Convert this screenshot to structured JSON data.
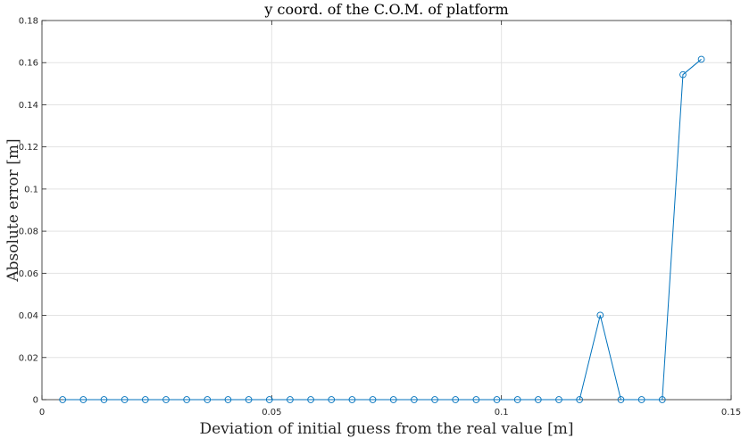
{
  "chart_data": {
    "type": "line",
    "title": "y coord. of the C.O.M. of platform",
    "xlabel": "Deviation of initial guess from the real value [m]",
    "ylabel": "Absolute error [m]",
    "xlim": [
      0,
      0.15
    ],
    "ylim": [
      0,
      0.18
    ],
    "xticks": [
      0,
      0.05,
      0.1,
      0.15
    ],
    "xtick_labels": [
      "0",
      "0.05",
      "0.1",
      "0.15"
    ],
    "yticks": [
      0,
      0.02,
      0.04,
      0.06,
      0.08,
      0.1,
      0.12,
      0.14,
      0.16,
      0.18
    ],
    "ytick_labels": [
      "0",
      "0.02",
      "0.04",
      "0.06",
      "0.08",
      "0.1",
      "0.12",
      "0.14",
      "0.16",
      "0.18"
    ],
    "grid": true,
    "marker": "circle",
    "color": "#0072BD",
    "x": [
      0.0045,
      0.009,
      0.0135,
      0.018,
      0.0225,
      0.027,
      0.0315,
      0.036,
      0.0405,
      0.045,
      0.0495,
      0.054,
      0.0585,
      0.063,
      0.0675,
      0.072,
      0.0765,
      0.081,
      0.0855,
      0.09,
      0.0945,
      0.099,
      0.1035,
      0.108,
      0.1125,
      0.117,
      0.1215,
      0.126,
      0.1305,
      0.135,
      0.1395,
      0.1435
    ],
    "y": [
      0,
      0,
      0,
      0,
      0,
      0,
      0,
      0,
      0,
      0,
      0,
      0,
      0,
      0,
      0,
      0,
      0,
      0,
      0,
      0,
      0,
      0,
      0,
      0,
      0,
      0,
      0.0401,
      0,
      0,
      0,
      0.1543,
      0.1616
    ]
  }
}
